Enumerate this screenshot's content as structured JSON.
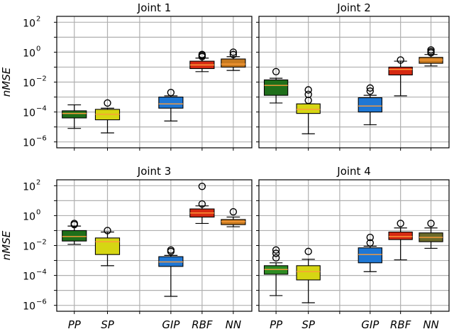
{
  "chart_data": [
    {
      "type": "box",
      "title": "Joint 1",
      "ylabel": "nMSE",
      "yscale": "log",
      "ylim": [
        1e-06,
        100
      ],
      "categories": [
        "PP",
        "SP",
        "GIP",
        "RBF",
        "NN"
      ],
      "boxes": [
        {
          "name": "PP",
          "whislo": 8e-06,
          "q1": 4e-05,
          "med": 8e-05,
          "q3": 0.00012,
          "whishi": 0.0003,
          "fliers": [],
          "color": "#1f6f1a"
        },
        {
          "name": "SP",
          "whislo": 4e-06,
          "q1": 3e-05,
          "med": 7e-05,
          "q3": 0.00015,
          "whishi": 0.00018,
          "fliers": [
            0.0004
          ],
          "color": "#d6d613"
        },
        {
          "name": "GIP",
          "whislo": 2.5e-05,
          "q1": 0.00018,
          "med": 0.00035,
          "q3": 0.001,
          "whishi": 0.0012,
          "fliers": [
            0.002
          ],
          "color": "#1f77d4"
        },
        {
          "name": "RBF",
          "whislo": 0.05,
          "q1": 0.08,
          "med": 0.14,
          "q3": 0.25,
          "whishi": 0.4,
          "fliers": [
            0.5,
            0.6,
            0.7
          ],
          "color": "#d62a12"
        },
        {
          "name": "NN",
          "whislo": 0.06,
          "q1": 0.1,
          "med": 0.16,
          "q3": 0.35,
          "whishi": 0.5,
          "fliers": [
            0.7,
            1.0
          ],
          "color": "#c77a20"
        }
      ]
    },
    {
      "type": "box",
      "title": "Joint 2",
      "ylabel": "",
      "yscale": "log",
      "ylim": [
        1e-06,
        100
      ],
      "categories": [
        "PP",
        "SP",
        "GIP",
        "RBF",
        "NN"
      ],
      "boxes": [
        {
          "name": "PP",
          "whislo": 0.0004,
          "q1": 0.0013,
          "med": 0.006,
          "q3": 0.014,
          "whishi": 0.018,
          "fliers": [
            0.05
          ],
          "color": "#1f6f1a"
        },
        {
          "name": "SP",
          "whislo": 3.5e-06,
          "q1": 8e-05,
          "med": 0.00015,
          "q3": 0.00035,
          "whishi": 0.00035,
          "fliers": [
            0.0006,
            0.0015,
            0.003
          ],
          "color": "#d6d613"
        },
        {
          "name": "GIP",
          "whislo": 1.4e-05,
          "q1": 0.0001,
          "med": 0.00025,
          "q3": 0.0009,
          "whishi": 0.0013,
          "fliers": [
            0.0025,
            0.004
          ],
          "color": "#1f77d4"
        },
        {
          "name": "RBF",
          "whislo": 0.0012,
          "q1": 0.03,
          "med": 0.07,
          "q3": 0.1,
          "whishi": 0.25,
          "fliers": [
            0.3
          ],
          "color": "#d62a12"
        },
        {
          "name": "NN",
          "whislo": 0.12,
          "q1": 0.18,
          "med": 0.3,
          "q3": 0.45,
          "whishi": 0.7,
          "fliers": [
            0.9,
            1.1,
            1.4
          ],
          "color": "#c77a20"
        }
      ]
    },
    {
      "type": "box",
      "title": "Joint 3",
      "ylabel": "nMSE",
      "yscale": "log",
      "ylim": [
        1e-06,
        100
      ],
      "categories": [
        "PP",
        "SP",
        "GIP",
        "RBF",
        "NN"
      ],
      "boxes": [
        {
          "name": "PP",
          "whislo": 0.012,
          "q1": 0.02,
          "med": 0.04,
          "q3": 0.1,
          "whishi": 0.2,
          "fliers": [
            0.25,
            0.3
          ],
          "color": "#1f6f1a"
        },
        {
          "name": "SP",
          "whislo": 0.00045,
          "q1": 0.0025,
          "med": 0.018,
          "q3": 0.032,
          "whishi": 0.08,
          "fliers": [
            0.1
          ],
          "color": "#d6d613"
        },
        {
          "name": "GIP",
          "whislo": 4e-06,
          "q1": 0.0004,
          "med": 0.0008,
          "q3": 0.0018,
          "whishi": 0.0022,
          "fliers": [
            0.004,
            0.005
          ],
          "color": "#1f77d4"
        },
        {
          "name": "RBF",
          "whislo": 0.3,
          "q1": 0.8,
          "med": 1.5,
          "q3": 2.8,
          "whishi": 4.5,
          "fliers": [
            6,
            90
          ],
          "color": "#d62a12"
        },
        {
          "name": "NN",
          "whislo": 0.18,
          "q1": 0.25,
          "med": 0.4,
          "q3": 0.55,
          "whishi": 0.8,
          "fliers": [
            1.8
          ],
          "color": "#c77a20"
        }
      ]
    },
    {
      "type": "box",
      "title": "Joint 4",
      "ylabel": "",
      "yscale": "log",
      "ylim": [
        1e-06,
        100
      ],
      "categories": [
        "PP",
        "SP",
        "GIP",
        "RBF",
        "NN"
      ],
      "boxes": [
        {
          "name": "PP",
          "whislo": 4.5e-06,
          "q1": 0.00012,
          "med": 0.00025,
          "q3": 0.00045,
          "whishi": 0.0007,
          "fliers": [
            0.0015,
            0.003,
            0.005
          ],
          "color": "#2d8a22"
        },
        {
          "name": "SP",
          "whislo": 1.5e-06,
          "q1": 5e-05,
          "med": 0.00018,
          "q3": 0.00045,
          "whishi": 0.0012,
          "fliers": [
            0.004
          ],
          "color": "#d6d613"
        },
        {
          "name": "GIP",
          "whislo": 0.00018,
          "q1": 0.0007,
          "med": 0.0025,
          "q3": 0.007,
          "whishi": 0.009,
          "fliers": [
            0.015,
            0.035
          ],
          "color": "#1f77d4"
        },
        {
          "name": "RBF",
          "whislo": 0.0011,
          "q1": 0.025,
          "med": 0.04,
          "q3": 0.08,
          "whishi": 0.15,
          "fliers": [
            0.3
          ],
          "color": "#d62a12"
        },
        {
          "name": "NN",
          "whislo": 0.0065,
          "q1": 0.018,
          "med": 0.035,
          "q3": 0.07,
          "whishi": 0.15,
          "fliers": [
            0.3
          ],
          "color": "#6b6b2a"
        }
      ]
    }
  ],
  "style": {
    "median_color": "#ff9d3a",
    "grid_color": "#b0b0b0",
    "ytick_labels": [
      "10",
      "10",
      "10",
      "10",
      "10"
    ],
    "ytick_exponents": [
      "2",
      "0",
      "−2",
      "−4",
      "−6"
    ]
  }
}
